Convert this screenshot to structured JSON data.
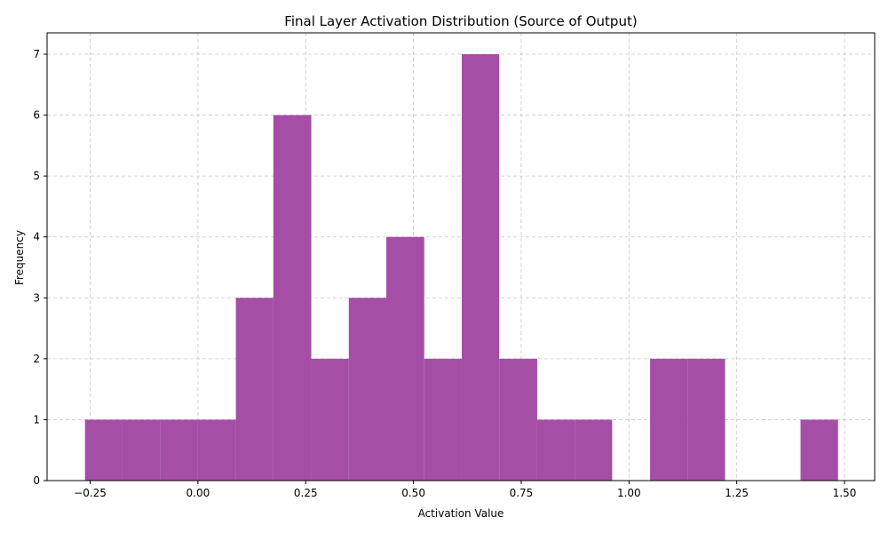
{
  "chart_data": {
    "type": "bar",
    "title": "Final Layer Activation Distribution (Source of Output)",
    "xlabel": "Activation Value",
    "ylabel": "Frequency",
    "xlim": [
      -0.35,
      1.57
    ],
    "ylim": [
      0,
      7.35
    ],
    "grid": true,
    "color": "#a44ea6",
    "bins": [
      {
        "x0": -0.262,
        "x1": -0.175,
        "count": 1
      },
      {
        "x0": -0.175,
        "x1": -0.088,
        "count": 1
      },
      {
        "x0": -0.088,
        "x1": 0.0,
        "count": 1
      },
      {
        "x0": 0.0,
        "x1": 0.088,
        "count": 1
      },
      {
        "x0": 0.088,
        "x1": 0.175,
        "count": 3
      },
      {
        "x0": 0.175,
        "x1": 0.263,
        "count": 6
      },
      {
        "x0": 0.263,
        "x1": 0.35,
        "count": 2
      },
      {
        "x0": 0.35,
        "x1": 0.437,
        "count": 3
      },
      {
        "x0": 0.437,
        "x1": 0.525,
        "count": 4
      },
      {
        "x0": 0.525,
        "x1": 0.612,
        "count": 2
      },
      {
        "x0": 0.612,
        "x1": 0.699,
        "count": 7
      },
      {
        "x0": 0.699,
        "x1": 0.787,
        "count": 2
      },
      {
        "x0": 0.787,
        "x1": 0.874,
        "count": 1
      },
      {
        "x0": 0.874,
        "x1": 0.961,
        "count": 1
      },
      {
        "x0": 0.961,
        "x1": 1.049,
        "count": 0
      },
      {
        "x0": 1.049,
        "x1": 1.136,
        "count": 2
      },
      {
        "x0": 1.136,
        "x1": 1.223,
        "count": 2
      },
      {
        "x0": 1.223,
        "x1": 1.311,
        "count": 0
      },
      {
        "x0": 1.311,
        "x1": 1.398,
        "count": 0
      },
      {
        "x0": 1.398,
        "x1": 1.485,
        "count": 1
      }
    ],
    "xticks": [
      -0.25,
      0.0,
      0.25,
      0.5,
      0.75,
      1.0,
      1.25,
      1.5
    ],
    "xtick_labels": [
      "−0.25",
      "0.00",
      "0.25",
      "0.50",
      "0.75",
      "1.00",
      "1.25",
      "1.50"
    ],
    "yticks": [
      0,
      1,
      2,
      3,
      4,
      5,
      6,
      7
    ],
    "ytick_labels": [
      "0",
      "1",
      "2",
      "3",
      "4",
      "5",
      "6",
      "7"
    ]
  }
}
